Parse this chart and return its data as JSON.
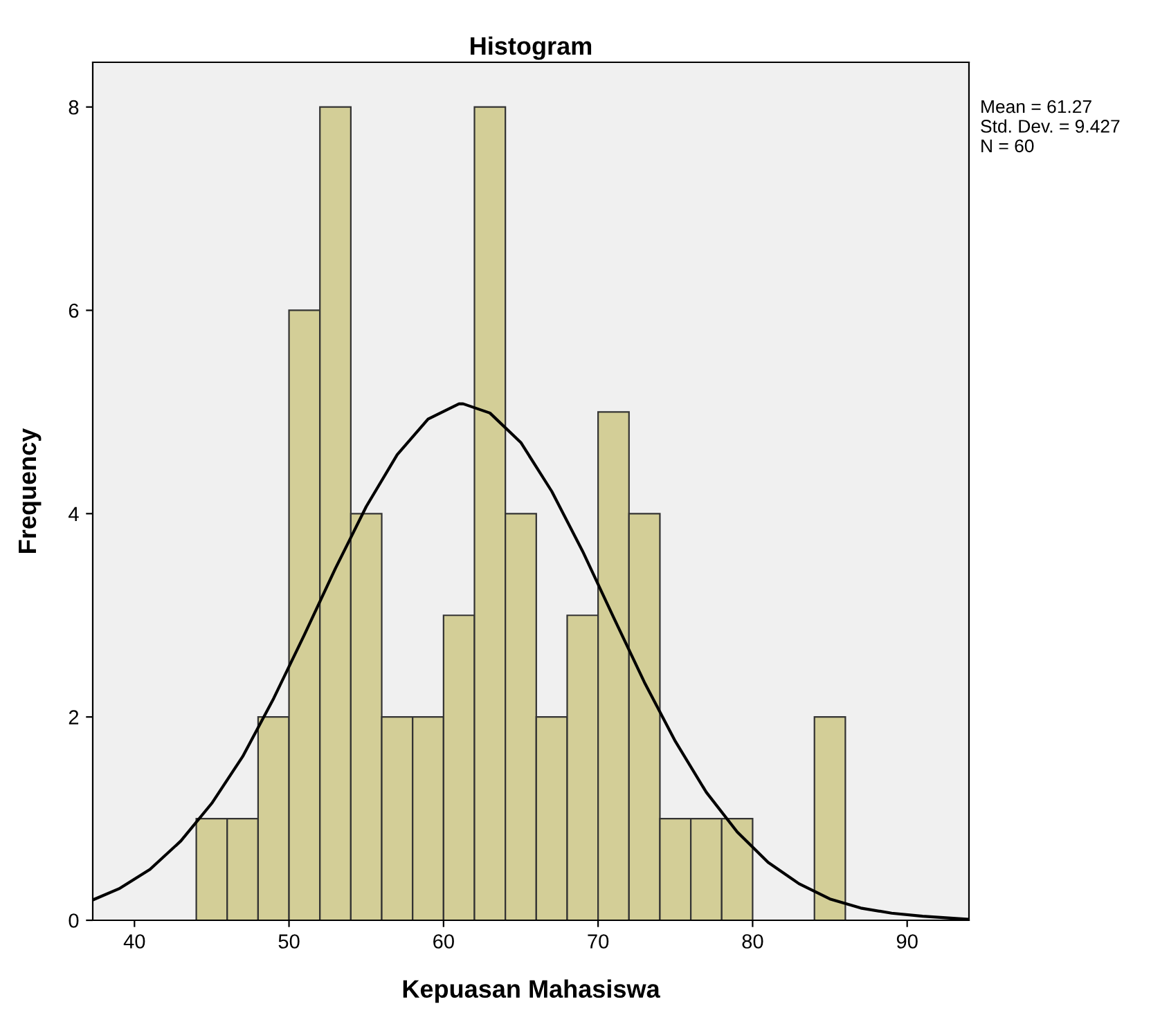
{
  "chart_data": {
    "type": "histogram",
    "title": "Histogram",
    "xlabel": "Kepuasan Mahasiswa",
    "ylabel": "Frequency",
    "bins": [
      44,
      46,
      48,
      50,
      52,
      54,
      56,
      58,
      60,
      62,
      64,
      66,
      68,
      70,
      72,
      74,
      76,
      78,
      80,
      82,
      84,
      86
    ],
    "values": [
      1,
      1,
      2,
      6,
      8,
      4,
      2,
      2,
      3,
      8,
      4,
      2,
      3,
      5,
      4,
      1,
      1,
      1,
      0,
      0,
      2
    ],
    "color": "#d3ce97",
    "series": [
      {
        "type": "line",
        "color": "#000000",
        "x": [
          37.3,
          39,
          41,
          43,
          45,
          47,
          49,
          51,
          53,
          55,
          57,
          59,
          61,
          61.27,
          63,
          65,
          67,
          69,
          71,
          73,
          75,
          77,
          79,
          81,
          83,
          85,
          87,
          89,
          91,
          93,
          94
        ],
        "values": [
          0.2,
          0.31,
          0.5,
          0.78,
          1.15,
          1.61,
          2.18,
          2.81,
          3.46,
          4.07,
          4.58,
          4.93,
          5.08,
          5.08,
          4.99,
          4.7,
          4.22,
          3.63,
          2.98,
          2.34,
          1.76,
          1.26,
          0.87,
          0.57,
          0.36,
          0.21,
          0.12,
          0.07,
          0.04,
          0.02,
          0.01
        ]
      }
    ],
    "xlim": [
      37.3,
      94
    ],
    "ylim": [
      0,
      8.44
    ],
    "xticks": [
      40,
      50,
      60,
      70,
      80,
      90
    ],
    "yticks": [
      0,
      2,
      4,
      6,
      8
    ],
    "grid": false,
    "legend": false,
    "annotations": [
      "Mean = 61.27\nStd. Dev. = 9.427\nN = 60"
    ]
  }
}
